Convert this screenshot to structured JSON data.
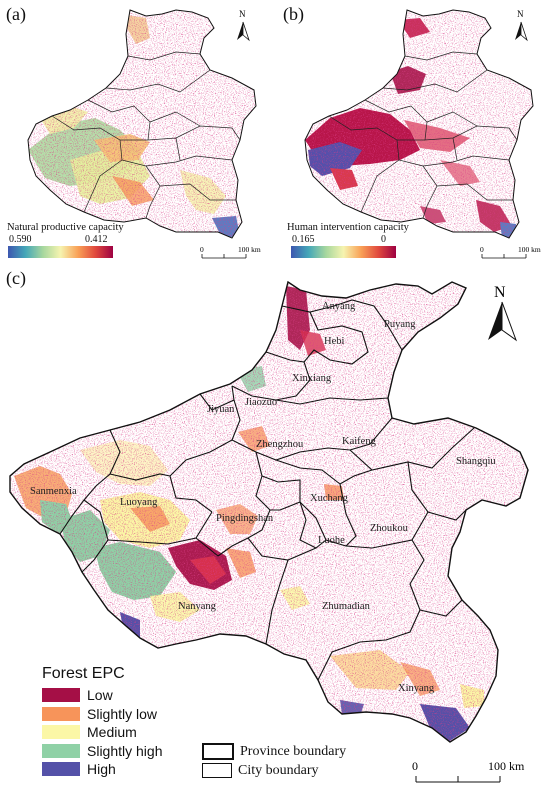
{
  "panels": {
    "a": {
      "label": "(a)",
      "legend_title": "Natural productive capacity",
      "legend_min": "0.590",
      "legend_max": "0.412",
      "colors": [
        "#3d57b0",
        "#44a7b8",
        "#a7d79e",
        "#f6f4b0",
        "#f9a157",
        "#e0493e",
        "#9e0142"
      ]
    },
    "b": {
      "label": "(b)",
      "legend_title": "Human intervention capacity",
      "legend_min": "0.165",
      "legend_max": "0",
      "colors": [
        "#3d57b0",
        "#44a7b8",
        "#a7d79e",
        "#f6f4b0",
        "#f9a157",
        "#e0493e",
        "#9e0142"
      ]
    },
    "c": {
      "label": "(c)"
    }
  },
  "scale_small": {
    "zero": "0",
    "end": "100 km"
  },
  "scale_large": {
    "zero": "0",
    "end": "100 km"
  },
  "north_label": "N",
  "cities": [
    {
      "name": "Anyang"
    },
    {
      "name": "Puyang"
    },
    {
      "name": "Hebi"
    },
    {
      "name": "Xinxiang"
    },
    {
      "name": "Jiyuan"
    },
    {
      "name": "Jiaozuo"
    },
    {
      "name": "Zhengzhou"
    },
    {
      "name": "Kaifeng"
    },
    {
      "name": "Shangqiu"
    },
    {
      "name": "Sanmenxia"
    },
    {
      "name": "Luoyang"
    },
    {
      "name": "Xuchang"
    },
    {
      "name": "Pingdingshan"
    },
    {
      "name": "Luohe"
    },
    {
      "name": "Zhoukou"
    },
    {
      "name": "Nanyang"
    },
    {
      "name": "Zhumadian"
    },
    {
      "name": "Xinyang"
    }
  ],
  "epc_legend": {
    "title": "Forest EPC",
    "items": [
      {
        "label": "Low",
        "color": "#a50f46"
      },
      {
        "label": "Slightly low",
        "color": "#f7945a"
      },
      {
        "label": "Medium",
        "color": "#fbf7a6"
      },
      {
        "label": "Slightly high",
        "color": "#8fd1a6"
      },
      {
        "label": "High",
        "color": "#5451a8"
      }
    ]
  },
  "boundary_legend": {
    "province": "Province boundary",
    "city": "City boundary"
  }
}
